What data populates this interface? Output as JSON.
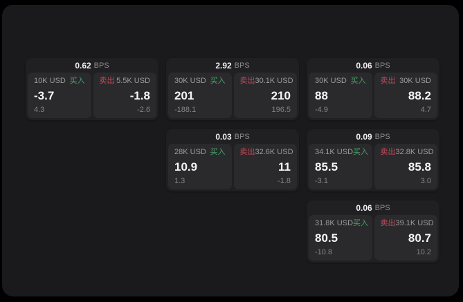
{
  "colors": {
    "background": "#000000",
    "panel": "#1a1a1c",
    "card": "#202022",
    "tile": "#2a2a2c",
    "buy_accent": "#47a06a",
    "sell_accent": "#c2485a",
    "value_text": "#f5f5f5",
    "muted_text": "#9c9c9c"
  },
  "cards": [
    {
      "bps_value": "0.62",
      "bps_unit": "BPS",
      "buy": {
        "amount": "10K USD",
        "side_label": "买入",
        "price": "-3.7",
        "delta": "4.3"
      },
      "sell": {
        "amount": "5.5K USD",
        "side_label": "卖出",
        "price": "-1.8",
        "delta": "-2.6"
      }
    },
    {
      "bps_value": "2.92",
      "bps_unit": "BPS",
      "buy": {
        "amount": "30K USD",
        "side_label": "买入",
        "price": "201",
        "delta": "-188.1"
      },
      "sell": {
        "amount": "30.1K USD",
        "side_label": "卖出",
        "price": "210",
        "delta": "196.5"
      }
    },
    {
      "bps_value": "0.06",
      "bps_unit": "BPS",
      "buy": {
        "amount": "30K USD",
        "side_label": "买入",
        "price": "88",
        "delta": "-4.9"
      },
      "sell": {
        "amount": "30K USD",
        "side_label": "卖出",
        "price": "88.2",
        "delta": "4.7"
      }
    },
    {
      "bps_value": "0.03",
      "bps_unit": "BPS",
      "buy": {
        "amount": "28K USD",
        "side_label": "买入",
        "price": "10.9",
        "delta": "1.3"
      },
      "sell": {
        "amount": "32.6K USD",
        "side_label": "卖出",
        "price": "11",
        "delta": "-1.8"
      }
    },
    {
      "bps_value": "0.09",
      "bps_unit": "BPS",
      "buy": {
        "amount": "34.1K USD",
        "side_label": "买入",
        "price": "85.5",
        "delta": "-3.1"
      },
      "sell": {
        "amount": "32.8K USD",
        "side_label": "卖出",
        "price": "85.8",
        "delta": "3.0"
      }
    },
    {
      "bps_value": "0.06",
      "bps_unit": "BPS",
      "buy": {
        "amount": "31.8K USD",
        "side_label": "买入",
        "price": "80.5",
        "delta": "-10.8"
      },
      "sell": {
        "amount": "39.1K USD",
        "side_label": "卖出",
        "price": "80.7",
        "delta": "10.2"
      }
    }
  ]
}
